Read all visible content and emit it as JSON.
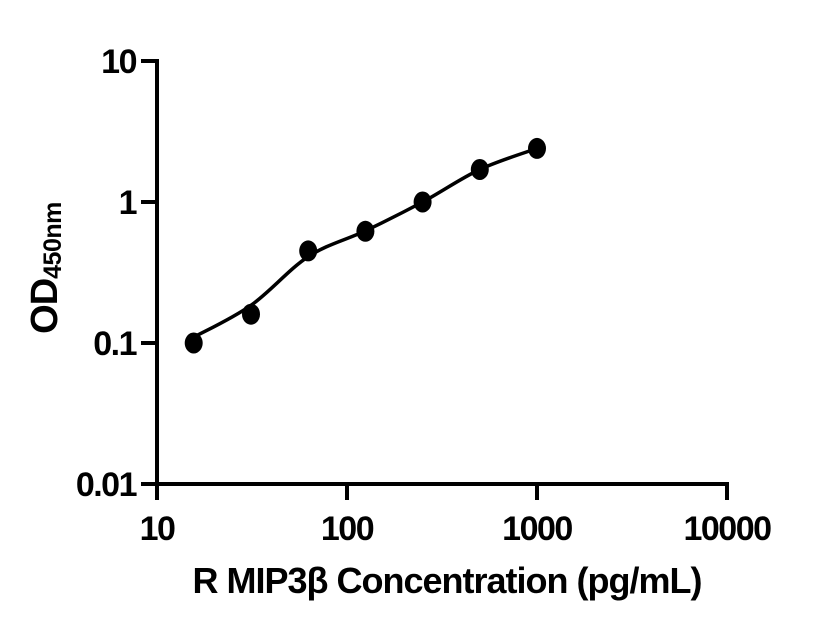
{
  "figure": {
    "background": "#ffffff"
  },
  "chart_data": {
    "type": "scatter",
    "title": "",
    "xlabel": "R MIP3β Concentration (pg/mL)",
    "ylabel_main": "OD",
    "ylabel_sub": "450nm",
    "x_scale": "log",
    "y_scale": "log",
    "xlim": [
      10,
      10000
    ],
    "ylim": [
      0.01,
      10
    ],
    "x_ticks": [
      "10",
      "100",
      "1000",
      "10000"
    ],
    "y_ticks": [
      "10",
      "1",
      "0.1",
      "0.01"
    ],
    "grid": false,
    "legend": null,
    "axis_color": "#000000",
    "series": [
      {
        "name": "fit-curve",
        "type": "line",
        "color": "#000000",
        "points": [
          {
            "x": 15.6,
            "y": 0.11
          },
          {
            "x": 31.25,
            "y": 0.185
          },
          {
            "x": 62.5,
            "y": 0.41
          },
          {
            "x": 125,
            "y": 0.625
          },
          {
            "x": 250,
            "y": 1.0
          },
          {
            "x": 500,
            "y": 1.7
          },
          {
            "x": 1000,
            "y": 2.4
          }
        ]
      },
      {
        "name": "standard-points",
        "type": "scatter",
        "marker": "filled-circle",
        "color": "#000000",
        "points": [
          {
            "x": 15.6,
            "y": 0.1
          },
          {
            "x": 31.25,
            "y": 0.16
          },
          {
            "x": 62.5,
            "y": 0.45
          },
          {
            "x": 125,
            "y": 0.62
          },
          {
            "x": 250,
            "y": 1.0
          },
          {
            "x": 500,
            "y": 1.7
          },
          {
            "x": 1000,
            "y": 2.4
          }
        ]
      }
    ]
  }
}
